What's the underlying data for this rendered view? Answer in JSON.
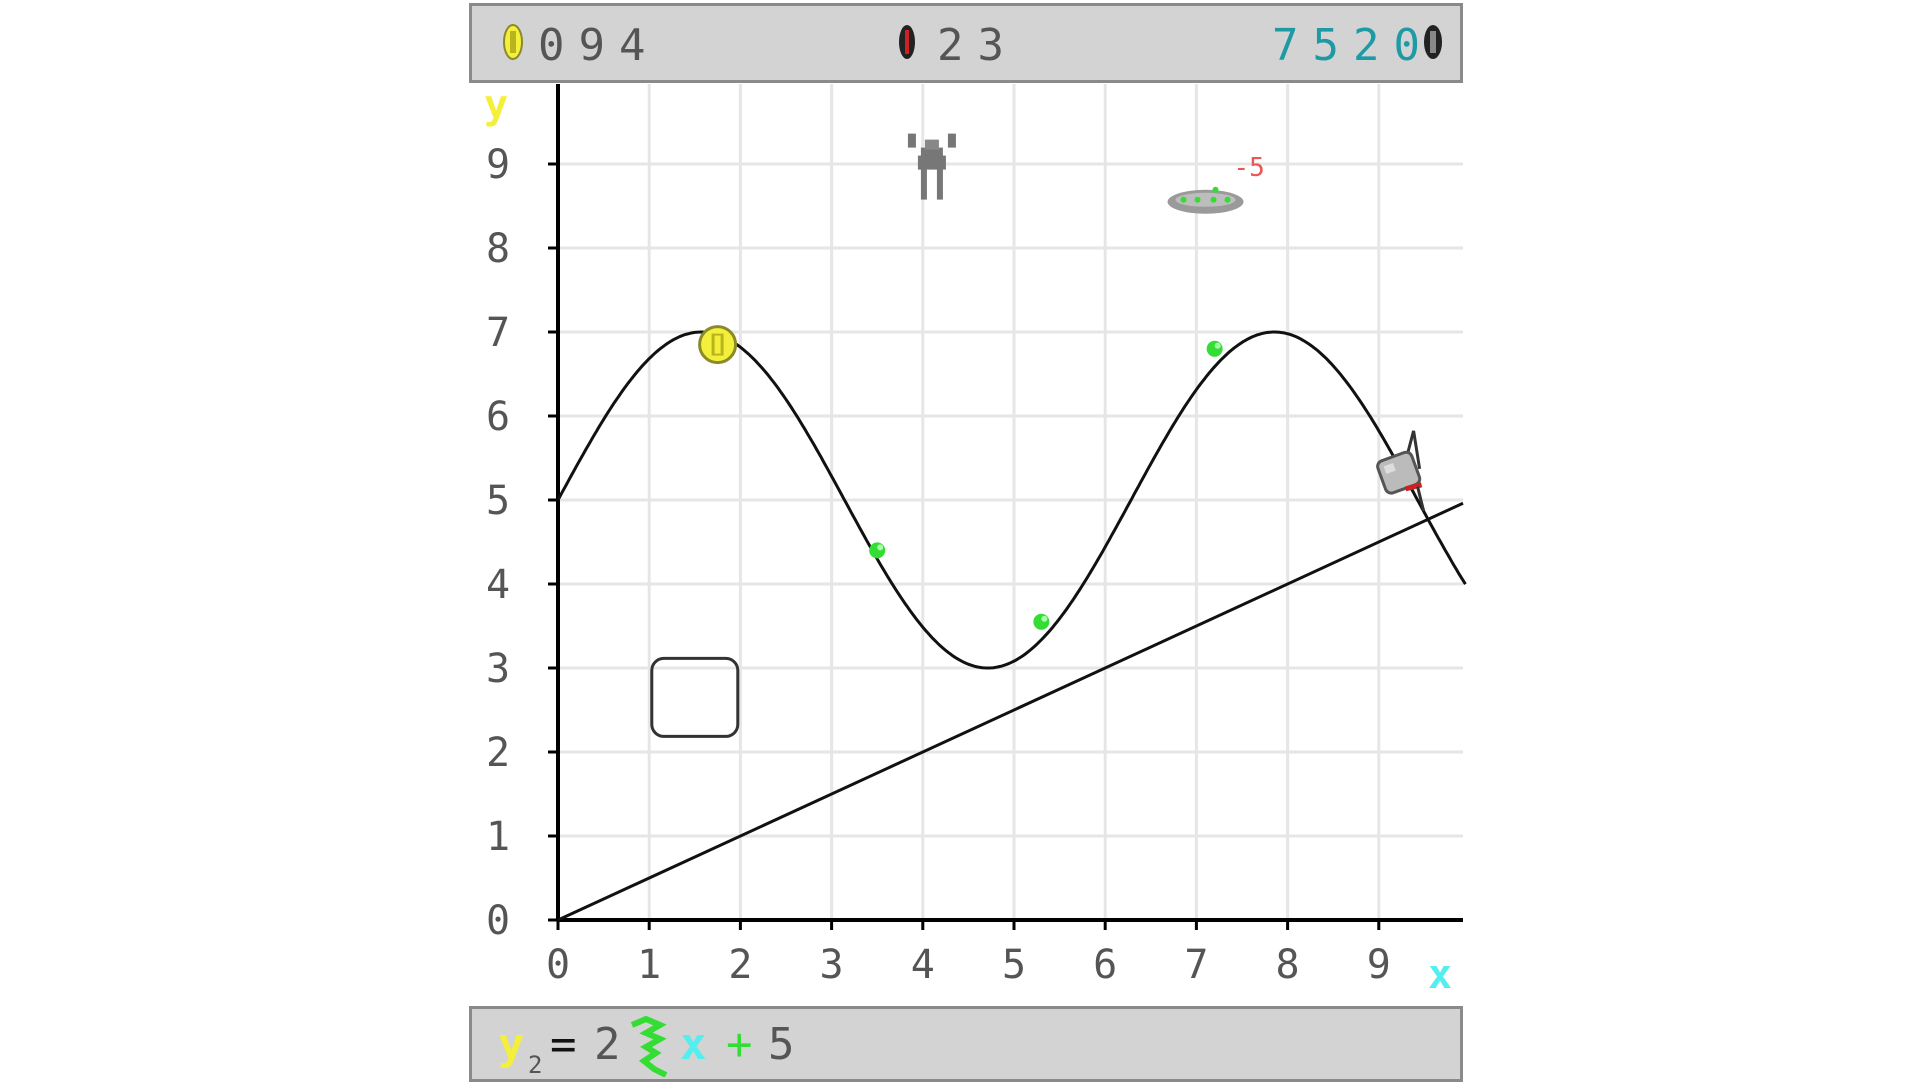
{
  "hud": {
    "coins": "094",
    "level": "23",
    "score": "7520",
    "colors": {
      "coin": "#f3ef3a",
      "score": "#1e9aa5",
      "text": "#555555"
    }
  },
  "axes": {
    "x_label": "x",
    "y_label": "y",
    "x_ticks": [
      "0",
      "1",
      "2",
      "3",
      "4",
      "5",
      "6",
      "7",
      "8",
      "9"
    ],
    "y_ticks": [
      "0",
      "1",
      "2",
      "3",
      "4",
      "5",
      "6",
      "7",
      "8",
      "9"
    ],
    "x_range": [
      0,
      10
    ],
    "y_range": [
      0,
      10
    ],
    "grid": true
  },
  "curves": {
    "sine": {
      "amplitude": 2,
      "offset": 5,
      "frequency": 1
    },
    "line": {
      "slope": 0.5,
      "intercept": 0
    }
  },
  "items": {
    "coin": {
      "x": 1.75,
      "y": 6.85
    },
    "gems": [
      {
        "x": 3.5,
        "y": 4.4
      },
      {
        "x": 5.3,
        "y": 3.55
      },
      {
        "x": 7.2,
        "y": 6.8
      }
    ],
    "player": {
      "x": 9.25,
      "y": 5.3
    },
    "enemy": {
      "x": 4.1,
      "y": 9.1
    },
    "ufo": {
      "x": 7.1,
      "y": 8.55,
      "damage_label": "-5"
    },
    "box": {
      "x": 1.5,
      "y": 2.65
    }
  },
  "equation": {
    "y": "y",
    "subscript": "2",
    "equals": "=",
    "coef": "2",
    "func_glyph": "sin",
    "x": "x",
    "plus": "+",
    "const": "5",
    "colors": {
      "y": "#f3ef3a",
      "func": "#33dd33",
      "x": "#55eeee",
      "text": "#555555"
    }
  }
}
